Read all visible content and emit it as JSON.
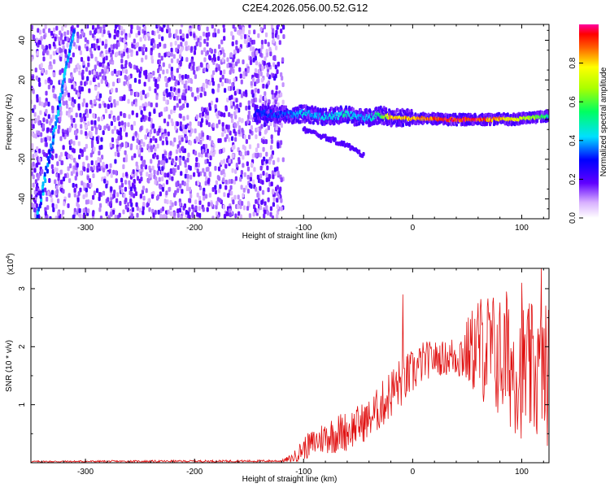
{
  "figure_title": "C2E4.2026.056.00.52.G12",
  "colors": {
    "snr_line": "#e01010",
    "axis": "#000000"
  },
  "chart_data": [
    {
      "type": "heatmap",
      "title": "C2E4.2026.056.00.52.G12",
      "xlabel": "Height of straight line (km)",
      "ylabel": "Frequency (Hz)",
      "xlim": [
        -350,
        125
      ],
      "ylim": [
        -50,
        48
      ],
      "x_ticks": [
        -300,
        -200,
        -100,
        0,
        100
      ],
      "x_tick_labels": [
        "-300",
        "-200",
        "-100",
        "0",
        "100"
      ],
      "y_ticks": [
        -40,
        -20,
        0,
        20,
        40
      ],
      "y_tick_labels": [
        "-40",
        "-20",
        "0",
        "20",
        "40"
      ],
      "colorbar": {
        "label": "Normalized spectral amplitude",
        "range": [
          0,
          1
        ],
        "ticks": [
          0.0,
          0.2,
          0.4,
          0.6,
          0.8
        ],
        "tick_labels": [
          "0.0",
          "0.2",
          "0.4",
          "0.6",
          "0.8"
        ]
      },
      "noise_region_x": [
        -350,
        -118
      ],
      "signal_track": {
        "x": [
          -145,
          -130,
          -120,
          -110,
          -100,
          -90,
          -80,
          -70,
          -60,
          -50,
          -40,
          -30,
          -20,
          -10,
          0,
          10,
          20,
          30,
          40,
          50,
          60,
          70,
          80,
          90,
          100,
          110,
          120,
          125
        ],
        "freq": [
          3,
          3,
          2.5,
          2.5,
          3,
          2,
          1.5,
          2,
          2.5,
          1,
          1,
          2.5,
          1,
          1,
          0.5,
          0.5,
          0.5,
          0,
          0,
          0,
          0,
          0,
          0.5,
          0,
          0.5,
          1,
          1.5,
          2
        ],
        "amplitude": [
          0.3,
          0.35,
          0.35,
          0.4,
          0.45,
          0.4,
          0.45,
          0.45,
          0.5,
          0.4,
          0.45,
          0.55,
          0.85,
          0.85,
          0.9,
          0.9,
          0.95,
          1.0,
          0.95,
          1.0,
          0.95,
          0.9,
          0.85,
          0.8,
          0.75,
          0.7,
          0.6,
          0.5
        ]
      },
      "secondary_branch": {
        "x": [
          -100,
          -80,
          -60,
          -45
        ],
        "freq": [
          -5,
          -9,
          -13,
          -18
        ]
      }
    },
    {
      "type": "line",
      "xlabel": "Height of straight line (km)",
      "ylabel": "SNR (10 * v/v)",
      "y_scale_label": "(x10",
      "y_scale_exponent": "4",
      "y_scale_close": ")",
      "xlim": [
        -350,
        125
      ],
      "ylim": [
        0,
        3.35
      ],
      "x_ticks": [
        -300,
        -200,
        -100,
        0,
        100
      ],
      "x_tick_labels": [
        "-300",
        "-200",
        "-100",
        "0",
        "100"
      ],
      "y_ticks": [
        1,
        2,
        3
      ],
      "y_tick_labels": [
        "1",
        "2",
        "3"
      ],
      "series": [
        {
          "name": "SNR",
          "envelope_x": [
            -350,
            -120,
            -110,
            -100,
            -90,
            -80,
            -70,
            -60,
            -50,
            -40,
            -30,
            -20,
            -15,
            -10,
            0,
            10,
            20,
            30,
            40,
            50,
            60,
            70,
            80,
            90,
            100,
            110,
            120,
            125
          ],
          "envelope_mean": [
            0.02,
            0.03,
            0.08,
            0.25,
            0.35,
            0.45,
            0.5,
            0.55,
            0.65,
            0.75,
            0.95,
            1.2,
            1.3,
            1.4,
            1.55,
            1.75,
            1.8,
            1.8,
            1.85,
            1.9,
            2.0,
            1.95,
            1.8,
            1.7,
            1.6,
            1.55,
            1.5,
            1.55
          ],
          "envelope_amp": [
            0.015,
            0.02,
            0.08,
            0.2,
            0.25,
            0.3,
            0.35,
            0.35,
            0.35,
            0.35,
            0.4,
            0.45,
            0.45,
            0.45,
            0.4,
            0.35,
            0.3,
            0.3,
            0.4,
            0.6,
            0.9,
            1.05,
            1.1,
            1.15,
            1.2,
            1.2,
            1.25,
            1.25
          ],
          "spikes": [
            {
              "x": -9,
              "y": 2.9
            },
            {
              "x": 100,
              "y": 3.1
            },
            {
              "x": 118,
              "y": 3.35
            },
            {
              "x": 60,
              "y": 2.75
            },
            {
              "x": 86,
              "y": 2.95
            }
          ]
        }
      ]
    }
  ]
}
